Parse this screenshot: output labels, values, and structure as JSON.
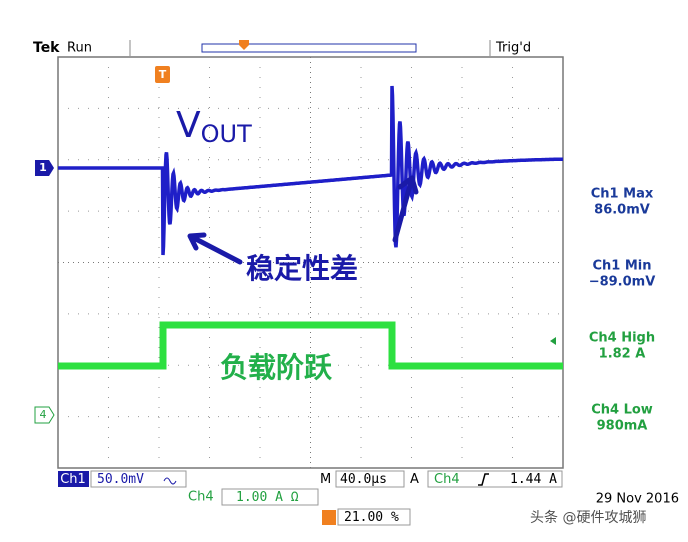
{
  "header": {
    "brand": "Tek",
    "state": "Run",
    "trigger_state": "Trig'd"
  },
  "annotations": {
    "vout_main": "V",
    "vout_sub": "OUT",
    "ringing": "稳定性差",
    "load_step": "负载阶跃"
  },
  "measurements": [
    {
      "label": "Ch1 Max",
      "value": "86.0mV"
    },
    {
      "label": "Ch1 Min",
      "value": "−89.0mV"
    },
    {
      "label": "Ch4 High",
      "value": "1.82 A"
    },
    {
      "label": "Ch4 Low",
      "value": "980mA"
    }
  ],
  "markers": {
    "ch1": "1",
    "ch4": "4",
    "trigger": "T"
  },
  "footer": {
    "ch1_name": "Ch1",
    "ch1_scale": "50.0mV",
    "timebase_prefix": "M",
    "timebase": "40.0µs",
    "trigger_prefix": "A",
    "trigger_source": "Ch4",
    "trigger_level": "1.44 A",
    "ch4_name": "Ch4",
    "ch4_scale": "1.00 A Ω",
    "trigger_position": "21.00 %",
    "date": "29 Nov 2016"
  },
  "watermark": "头条 @硬件攻城狮"
}
